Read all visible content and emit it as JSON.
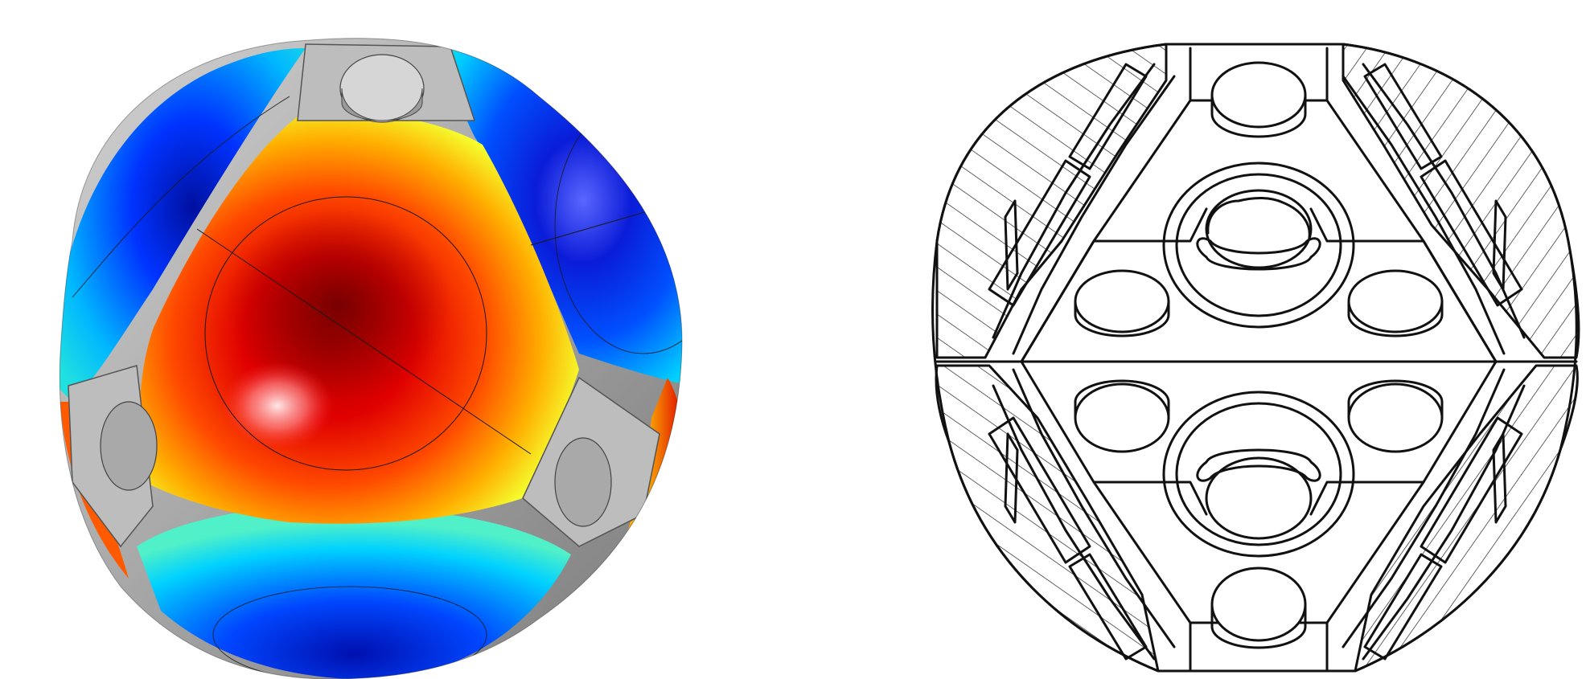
{
  "figure": {
    "panels": [
      {
        "id": "simulation-render",
        "kind": "3d-colored-surface-render",
        "colormap": [
          "#00007a",
          "#0033ff",
          "#00d9ff",
          "#6cff9a",
          "#ffff33",
          "#ff8800",
          "#e00000",
          "#7a0000"
        ],
        "highlight_color": "#ffd6d6"
      },
      {
        "id": "cross-section-drawing",
        "kind": "line-drawing",
        "stroke_color": "#111111",
        "hatch": "diagonal"
      }
    ]
  }
}
